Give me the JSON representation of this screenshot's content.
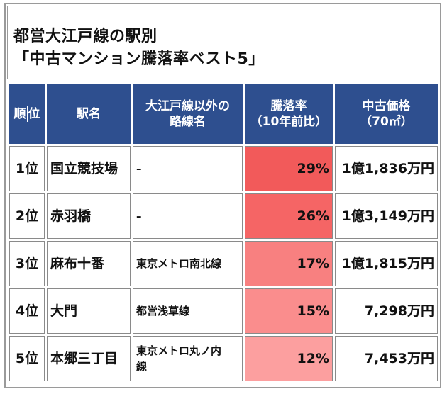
{
  "title": {
    "line1": "都営大江戸線の駅別",
    "line2": "「中古マンション騰落率ベスト5」"
  },
  "table": {
    "headers": {
      "rank": [
        "順",
        "位"
      ],
      "station": "駅名",
      "other_lines": [
        "大江戸線以外の",
        "路線名"
      ],
      "rate": [
        "騰落率",
        "（10年前比）"
      ],
      "price": [
        "中古価格",
        "（70㎡）"
      ]
    },
    "rows": [
      {
        "rank": "1位",
        "station": "国立競技場",
        "other_lines": "–",
        "rate": "29%",
        "price": "1億1,836万円",
        "rate_color": "#f25a5a"
      },
      {
        "rank": "2位",
        "station": "赤羽橋",
        "other_lines": "–",
        "rate": "26%",
        "price": "1億3,149万円",
        "rate_color": "#f56565"
      },
      {
        "rank": "3位",
        "station": "麻布十番",
        "other_lines": "東京メトロ南北線",
        "rate": "17%",
        "price": "1億1,815万円",
        "rate_color": "#f88080"
      },
      {
        "rank": "4位",
        "station": "大門",
        "other_lines": "都営浅草線",
        "rate": "15%",
        "price": "7,298万円",
        "rate_color": "#fa8d8d"
      },
      {
        "rank": "5位",
        "station": "本郷三丁目",
        "other_lines": [
          "東京メトロ丸ノ内",
          "線"
        ],
        "rate": "12%",
        "price": "7,453万円",
        "rate_color": "#fc9f9f"
      }
    ]
  },
  "colors": {
    "header_bg": "#2e4f8f",
    "header_text": "#ffffff",
    "border": "#8a8a8a"
  }
}
